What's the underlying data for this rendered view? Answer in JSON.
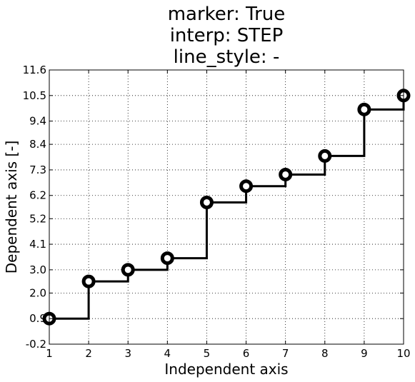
{
  "chart_data": {
    "type": "line",
    "title_lines": [
      "marker: True",
      "interp: STEP",
      "line_style: -"
    ],
    "xlabel": "Independent axis",
    "ylabel": "Dependent axis [-]",
    "xlim": [
      1,
      10
    ],
    "ylim": [
      -0.2,
      11.6
    ],
    "xticks": [
      "1",
      "2",
      "3",
      "4",
      "5",
      "6",
      "7",
      "8",
      "9",
      "10"
    ],
    "yticks": [
      "-0.2",
      "0.9",
      "2.0",
      "3.0",
      "4.1",
      "5.2",
      "6.2",
      "7.3",
      "8.4",
      "9.4",
      "10.5",
      "11.6"
    ],
    "grid": true,
    "interpolation": "step-post",
    "line_color": "#000000",
    "marker": "circle",
    "series": [
      {
        "x": [
          1,
          2,
          3,
          4,
          5,
          6,
          7,
          8,
          9,
          10
        ],
        "values": [
          0.9,
          2.5,
          3.0,
          3.5,
          5.9,
          6.6,
          7.1,
          7.9,
          9.9,
          10.5
        ]
      }
    ]
  }
}
